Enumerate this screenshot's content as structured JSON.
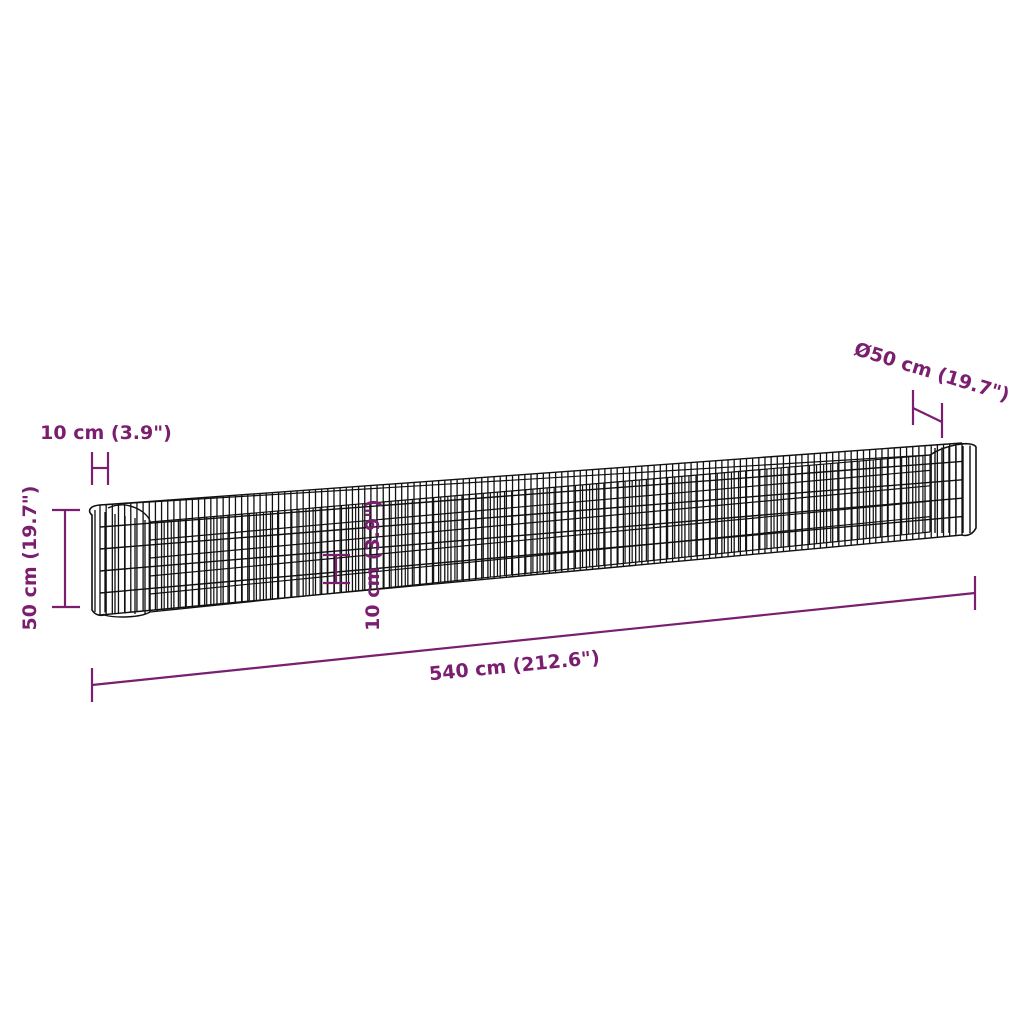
{
  "colors": {
    "dimension": "#7b1e6f",
    "wire": "#111111",
    "background": "#ffffff"
  },
  "dimensions": {
    "length": "540 cm (212.6\")",
    "height": "50 cm (19.7\")",
    "mesh_top": "10 cm (3.9\")",
    "mesh_inner": "10 cm (3.9\")",
    "diameter": "Ø50 cm (19.7\")"
  }
}
